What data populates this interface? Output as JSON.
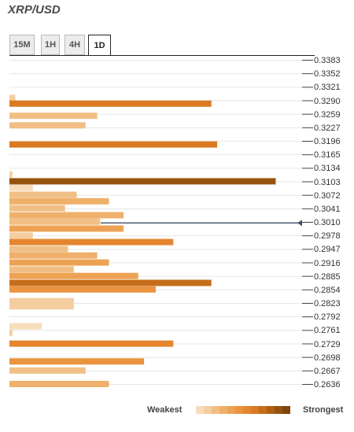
{
  "title": "XRP/USD",
  "tabs": [
    {
      "label": "15M",
      "active": false
    },
    {
      "label": "1H",
      "active": false
    },
    {
      "label": "4H",
      "active": false
    },
    {
      "label": "1D",
      "active": true
    }
  ],
  "legend": {
    "weakest_label": "Weakest",
    "strongest_label": "Strongest",
    "scale_colors": [
      "#f7dcbc",
      "#f4cda1",
      "#f1bf86",
      "#efb06b",
      "#eda253",
      "#ea9440",
      "#e5862f",
      "#d97a22",
      "#c56d1a",
      "#ad6014",
      "#96530f",
      "#7f460b"
    ]
  },
  "current_price_marker_color": "#3a4f66",
  "chart_data": {
    "type": "bar",
    "orientation": "horizontal",
    "price_levels": [
      "0.3383",
      "0.3352",
      "0.3321",
      "0.3290",
      "0.3259",
      "0.3227",
      "0.3196",
      "0.3165",
      "0.3134",
      "0.3103",
      "0.3072",
      "0.3041",
      "0.3010",
      "0.2978",
      "0.2947",
      "0.2916",
      "0.2885",
      "0.2854",
      "0.2823",
      "0.2792",
      "0.2761",
      "0.2729",
      "0.2698",
      "0.2667",
      "0.2636"
    ],
    "current_price": 0.3007,
    "ylim": [
      0.2636,
      0.3383
    ],
    "bars": [
      {
        "price": 0.3295,
        "strength": 0.02,
        "color": "#f4cda1"
      },
      {
        "price": 0.3282,
        "strength": 0.69,
        "color": "#d97a22"
      },
      {
        "price": 0.3254,
        "strength": 0.3,
        "color": "#f1bf86"
      },
      {
        "price": 0.3232,
        "strength": 0.26,
        "color": "#f1bf86"
      },
      {
        "price": 0.3188,
        "strength": 0.71,
        "color": "#d97a22"
      },
      {
        "price": 0.3119,
        "strength": 0.01,
        "color": "#f4cda1"
      },
      {
        "price": 0.3103,
        "strength": 0.91,
        "color": "#96530f"
      },
      {
        "price": 0.3088,
        "strength": 0.08,
        "color": "#f7dcbc"
      },
      {
        "price": 0.3072,
        "strength": 0.23,
        "color": "#f1bf86"
      },
      {
        "price": 0.3057,
        "strength": 0.34,
        "color": "#efb06b"
      },
      {
        "price": 0.3041,
        "strength": 0.19,
        "color": "#f1bf86"
      },
      {
        "price": 0.3025,
        "strength": 0.39,
        "color": "#efb06b"
      },
      {
        "price": 0.301,
        "strength": 0.31,
        "color": "#f1bf86"
      },
      {
        "price": 0.2994,
        "strength": 0.39,
        "color": "#eda253"
      },
      {
        "price": 0.2978,
        "strength": 0.08,
        "color": "#f4cda1"
      },
      {
        "price": 0.2963,
        "strength": 0.56,
        "color": "#e5862f"
      },
      {
        "price": 0.2947,
        "strength": 0.2,
        "color": "#f1bf86"
      },
      {
        "price": 0.2932,
        "strength": 0.3,
        "color": "#efb06b"
      },
      {
        "price": 0.2916,
        "strength": 0.34,
        "color": "#eda253"
      },
      {
        "price": 0.29,
        "strength": 0.22,
        "color": "#f1bf86"
      },
      {
        "price": 0.2885,
        "strength": 0.44,
        "color": "#eda253"
      },
      {
        "price": 0.2869,
        "strength": 0.69,
        "color": "#c56d1a"
      },
      {
        "price": 0.2854,
        "strength": 0.5,
        "color": "#ea9440"
      },
      {
        "price": 0.2827,
        "strength": 0.22,
        "color": "#f4cda1"
      },
      {
        "price": 0.2815,
        "strength": 0.22,
        "color": "#f4cda1"
      },
      {
        "price": 0.2769,
        "strength": 0.11,
        "color": "#f7dcbc"
      },
      {
        "price": 0.2754,
        "strength": 0.01,
        "color": "#f4cda1"
      },
      {
        "price": 0.2729,
        "strength": 0.56,
        "color": "#e5862f"
      },
      {
        "price": 0.2688,
        "strength": 0.46,
        "color": "#ea9440"
      },
      {
        "price": 0.2667,
        "strength": 0.26,
        "color": "#f1bf86"
      },
      {
        "price": 0.2636,
        "strength": 0.34,
        "color": "#efb06b"
      }
    ]
  }
}
